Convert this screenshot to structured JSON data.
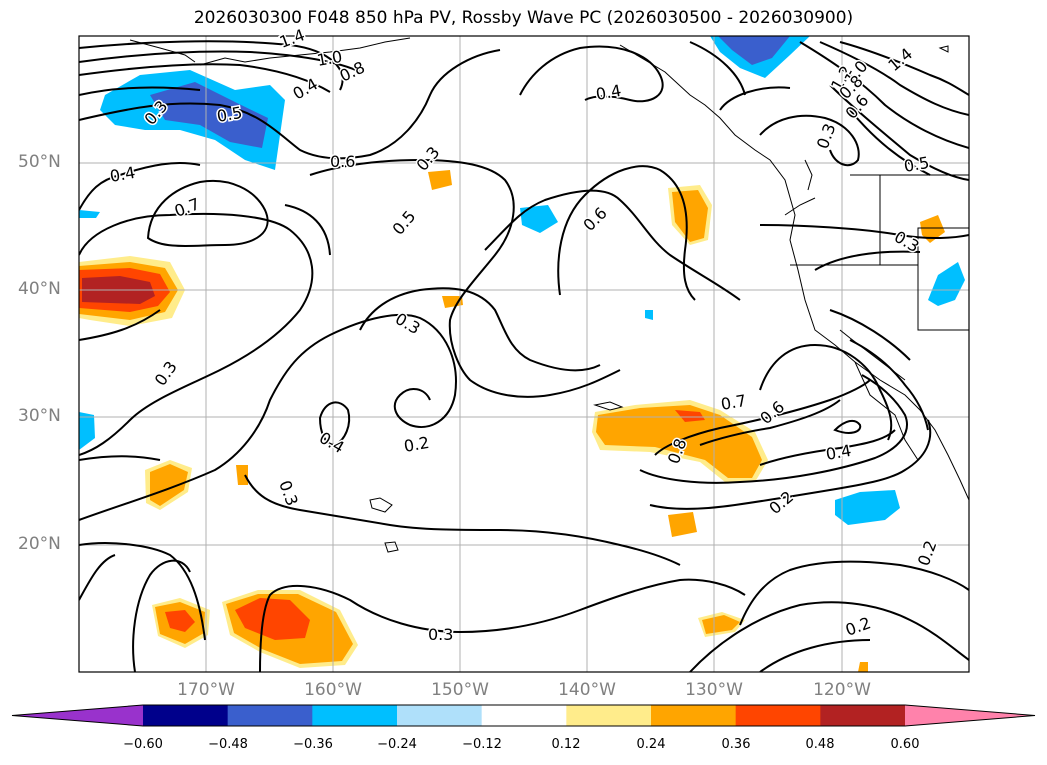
{
  "title": "2026030300 F048 850 hPa PV, Rossby Wave PC (2026030500 - 2026030900)",
  "lat_labels": [
    "50°N",
    "40°N",
    "30°N",
    "20°N"
  ],
  "lon_labels": [
    "170°W",
    "160°W",
    "150°W",
    "140°W",
    "130°W",
    "120°W"
  ],
  "contour_labels": [
    "1.4",
    "1.0",
    "0.8",
    "0.4",
    "0.3",
    "0.4",
    "0.6",
    "0.7",
    "0.5",
    "0.3",
    "0.3",
    "0.4",
    "0.2",
    "0.3",
    "0.6",
    "0.4",
    "0.3",
    "1.2",
    "1.4",
    "1.0",
    "0.8",
    "0.6",
    "0.3",
    "0.5",
    "0.3",
    "0.5",
    "0.7",
    "0.6",
    "0.8",
    "0.4",
    "0.2",
    "0.3",
    "0.2",
    "0.2"
  ],
  "colorbar": {
    "ticks": [
      "−0.60",
      "−0.48",
      "−0.36",
      "−0.24",
      "−0.12",
      "0.12",
      "0.24",
      "0.36",
      "0.48",
      "0.60"
    ],
    "colors": [
      "#9932cc",
      "#00008b",
      "#3a5fcd",
      "#00bfff",
      "#afe0fa",
      "#ffffff",
      "#ffec8b",
      "#ffa500",
      "#ff4500",
      "#b22222",
      "#ff82ab"
    ]
  },
  "map_colors": {
    "contour": "#000000",
    "grid": "#b0b0b0",
    "land": "#ffffff"
  }
}
